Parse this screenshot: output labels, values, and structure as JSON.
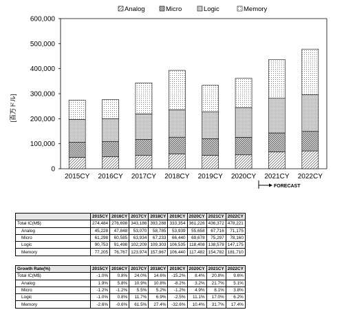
{
  "chart_data": {
    "type": "bar",
    "stacked": true,
    "categories": [
      "2015CY",
      "2016CY",
      "2017CY",
      "2018CY",
      "2019CY",
      "2020CY",
      "2021CY",
      "2022CY"
    ],
    "series": [
      {
        "name": "Analog",
        "values": [
          45228,
          47848,
          53070,
          58785,
          53939,
          55658,
          67716,
          71175
        ],
        "pattern": "diagonal"
      },
      {
        "name": "Micro",
        "values": [
          61298,
          60585,
          63934,
          67233,
          66440,
          69678,
          75297,
          78160
        ],
        "pattern": "crosshatch"
      },
      {
        "name": "Logic",
        "values": [
          90753,
          91498,
          102209,
          109303,
          106535,
          118408,
          138578,
          147175
        ],
        "pattern": "fine-grid"
      },
      {
        "name": "Memory",
        "values": [
          77205,
          76767,
          123974,
          157967,
          106440,
          117482,
          154782,
          181710
        ],
        "pattern": "dots"
      }
    ],
    "ylabel": "[百万ドル]",
    "ylim": [
      0,
      600000
    ],
    "yticks": [
      "0",
      "100,000",
      "200,000",
      "300,000",
      "400,000",
      "500,000",
      "600,000"
    ],
    "legend_position": "top",
    "annotation": "FORECAST",
    "grid": false
  },
  "table1": {
    "headers": [
      "",
      "2015CY",
      "2016CY",
      "2017CY",
      "2018CY",
      "2019CY",
      "2020CY",
      "2021CY",
      "2022CY"
    ],
    "rows": [
      {
        "label": "Total IC(M$)",
        "values": [
          "274,484",
          "276,698",
          "343,186",
          "393,288",
          "333,354",
          "361,226",
          "436,372",
          "478,221"
        ]
      },
      {
        "label": "Analog",
        "values": [
          "45,228",
          "47,848",
          "53,070",
          "58,785",
          "53,939",
          "55,658",
          "67,716",
          "71,175"
        ]
      },
      {
        "label": "Micro",
        "values": [
          "61,298",
          "60,585",
          "63,934",
          "67,233",
          "66,440",
          "69,678",
          "75,297",
          "78,160"
        ]
      },
      {
        "label": "Logic",
        "values": [
          "90,753",
          "91,498",
          "102,209",
          "109,303",
          "106,535",
          "118,408",
          "138,578",
          "147,175"
        ]
      },
      {
        "label": "Memory",
        "values": [
          "77,205",
          "76,767",
          "123,974",
          "157,967",
          "106,440",
          "117,482",
          "154,782",
          "181,710"
        ]
      }
    ]
  },
  "table2": {
    "headers": [
      "Growth Rate(%)",
      "2015CY",
      "2016CY",
      "2017CY",
      "2018CY",
      "2019CY",
      "2020CY",
      "2021CY",
      "2022CY"
    ],
    "rows": [
      {
        "label": "Total IC(M$)",
        "values": [
          "-1.0%",
          "0.8%",
          "24.0%",
          "14.6%",
          "-15.2%",
          "8.4%",
          "20.8%",
          "9.6%"
        ]
      },
      {
        "label": "Analog",
        "values": [
          "1.9%",
          "5.8%",
          "10.9%",
          "10.8%",
          "-8.2%",
          "3.2%",
          "21.7%",
          "5.1%"
        ]
      },
      {
        "label": "Micro",
        "values": [
          "-1.2%",
          "-1.2%",
          "5.5%",
          "5.2%",
          "-1.2%",
          "4.9%",
          "8.1%",
          "3.8%"
        ]
      },
      {
        "label": "Logic",
        "values": [
          "-1.0%",
          "0.8%",
          "11.7%",
          "6.9%",
          "-2.5%",
          "11.1%",
          "17.0%",
          "6.2%"
        ]
      },
      {
        "label": "Memory",
        "values": [
          "-2.6%",
          "-0.6%",
          "61.5%",
          "27.4%",
          "-32.6%",
          "10.4%",
          "31.7%",
          "17.4%"
        ]
      }
    ]
  }
}
